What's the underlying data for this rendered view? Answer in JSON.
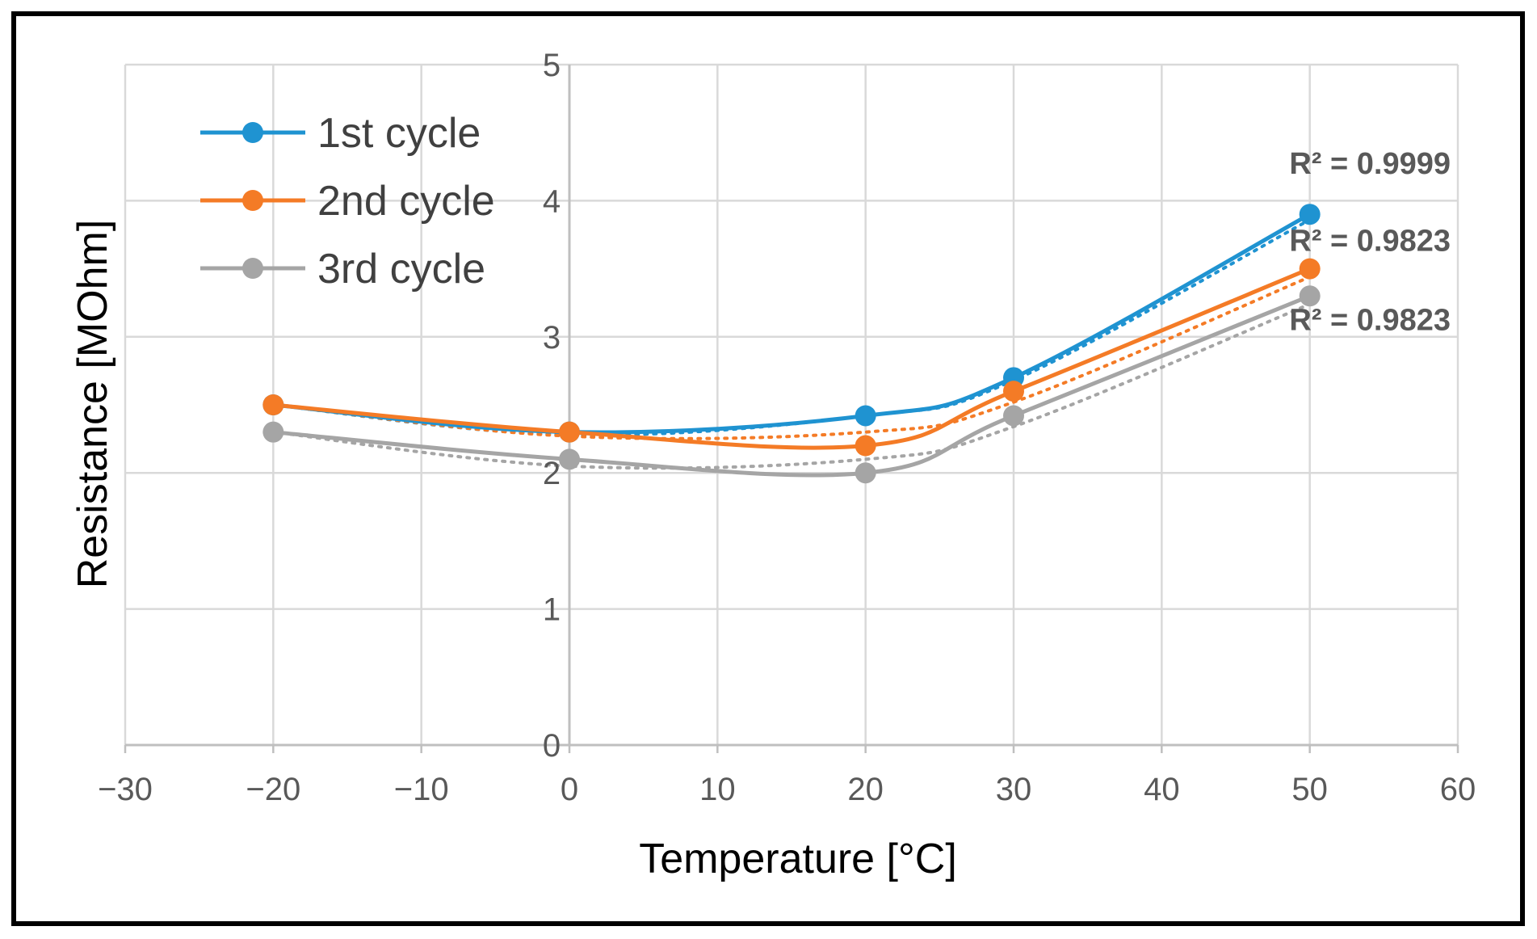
{
  "chart_data": {
    "type": "line",
    "title": "",
    "xlabel": "Temperature [°C]",
    "ylabel": "Resistance [MOhm]",
    "xlim": [
      -30,
      60
    ],
    "ylim": [
      0,
      5
    ],
    "xticks": [
      -30,
      -20,
      -10,
      0,
      10,
      20,
      30,
      40,
      50,
      60
    ],
    "xtick_labels": [
      "−30",
      "−20",
      "−10",
      "0",
      "10",
      "20",
      "30",
      "40",
      "50",
      "60"
    ],
    "yticks": [
      0,
      1,
      2,
      3,
      4,
      5
    ],
    "ytick_labels": [
      "0",
      "1",
      "2",
      "3",
      "4",
      "5"
    ],
    "grid": true,
    "legend_position": "top-left",
    "series": [
      {
        "name": "1st cycle",
        "color": "#1f93d1",
        "x": [
          -20,
          0,
          20,
          30,
          50
        ],
        "values": [
          2.5,
          2.3,
          2.42,
          2.7,
          3.9
        ],
        "trendline": [
          2.5,
          2.28,
          2.42,
          2.68,
          3.86
        ]
      },
      {
        "name": "2nd cycle",
        "color": "#f47b26",
        "x": [
          -20,
          0,
          20,
          30,
          50
        ],
        "values": [
          2.5,
          2.3,
          2.2,
          2.6,
          3.5
        ],
        "trendline": [
          2.5,
          2.27,
          2.3,
          2.52,
          3.44
        ]
      },
      {
        "name": "3rd cycle",
        "color": "#a5a5a5",
        "x": [
          -20,
          0,
          20,
          30,
          50
        ],
        "values": [
          2.3,
          2.1,
          2.0,
          2.42,
          3.3
        ],
        "trendline": [
          2.3,
          2.05,
          2.1,
          2.34,
          3.24
        ]
      }
    ],
    "annotations": [
      {
        "text": "R² = 0.9999",
        "series": "1st cycle"
      },
      {
        "text": "R² = 0.9823",
        "series": "2nd cycle"
      },
      {
        "text": "R² = 0.9823",
        "series": "3rd cycle"
      }
    ]
  }
}
